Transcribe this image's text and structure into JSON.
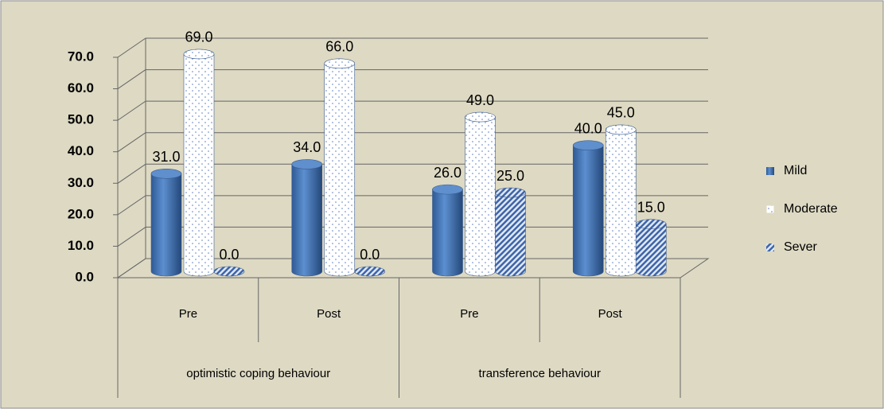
{
  "chart_data": {
    "type": "bar3d",
    "categories": [
      "Pre",
      "Post",
      "Pre",
      "Post"
    ],
    "groups": [
      "optimistic  coping behaviour",
      "transference behaviour"
    ],
    "series": [
      {
        "name": "Mild",
        "color": "#4f81bd",
        "values": [
          31,
          34,
          26,
          40
        ],
        "value_labels": [
          "31.0",
          "34.0",
          "26.0",
          "40.0"
        ]
      },
      {
        "name": "Moderate",
        "color": "#ffffff",
        "values": [
          69,
          66,
          49,
          45
        ],
        "value_labels": [
          "69.0",
          "66.0",
          "49.0",
          "45.0"
        ]
      },
      {
        "name": "Sever",
        "color": "#5b7fbf",
        "values": [
          0,
          0,
          25,
          15
        ],
        "value_labels": [
          "0.0",
          "0.0",
          "25.0",
          "15.0"
        ]
      }
    ],
    "ylim": [
      0,
      70
    ],
    "yticks": [
      {
        "value": 0,
        "label": "0.0"
      },
      {
        "value": 10,
        "label": "10.0"
      },
      {
        "value": 20,
        "label": "20.0"
      },
      {
        "value": 30,
        "label": "30.0"
      },
      {
        "value": 40,
        "label": "40.0"
      },
      {
        "value": 50,
        "label": "50.0"
      },
      {
        "value": 60,
        "label": "60.0"
      },
      {
        "value": 70,
        "label": "70.0"
      }
    ],
    "grid": true
  }
}
